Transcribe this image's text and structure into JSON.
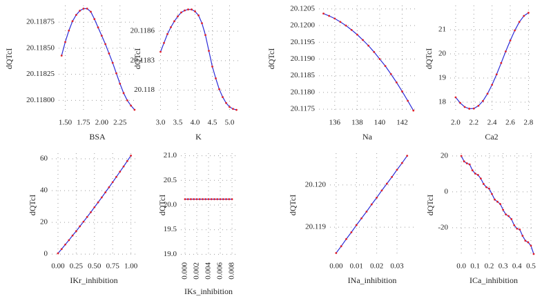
{
  "chart_data": [
    {
      "type": "line",
      "xlabel": "BSA",
      "ylabel": "dQTcI",
      "x": [
        1.45,
        1.5,
        1.55,
        1.6,
        1.65,
        1.7,
        1.75,
        1.8,
        1.85,
        1.9,
        1.95,
        2.0,
        2.05,
        2.1,
        2.15,
        2.2,
        2.25,
        2.3,
        2.35,
        2.4,
        2.45
      ],
      "values": [
        20.11843,
        20.11856,
        20.11867,
        20.11876,
        20.11882,
        20.11886,
        20.11888,
        20.11888,
        20.11885,
        20.11878,
        20.1187,
        20.11862,
        20.11854,
        20.11845,
        20.11836,
        20.11826,
        20.11816,
        20.11807,
        20.118,
        20.11795,
        20.11791
      ],
      "xlim": [
        1.41,
        2.47
      ],
      "ylim": [
        20.11789,
        20.11891
      ],
      "xticks": [
        {
          "value": 1.5,
          "label": "1.50"
        },
        1.75,
        {
          "value": 2,
          "label": "2.00"
        },
        2.25
      ],
      "yticks": [
        {
          "value": 20.118,
          "label": "20.11800"
        },
        20.11825,
        {
          "value": 20.1185,
          "label": "20.11850"
        },
        20.11875
      ],
      "grid": true,
      "color": "#2a2ad8",
      "marker_color": "#e0202a"
    },
    {
      "type": "line",
      "xlabel": "K",
      "ylabel": "dQTcI",
      "x": [
        3.0,
        3.1,
        3.2,
        3.3,
        3.4,
        3.5,
        3.6,
        3.7,
        3.8,
        3.9,
        4.0,
        4.1,
        4.2,
        4.3,
        4.4,
        4.5,
        4.6,
        4.7,
        4.8,
        4.9,
        5.0,
        5.1,
        5.2
      ],
      "values": [
        20.11839,
        20.11848,
        20.11857,
        20.11864,
        20.1187,
        20.11875,
        20.11879,
        20.11881,
        20.11882,
        20.11882,
        20.1188,
        20.11876,
        20.11868,
        20.11856,
        20.1184,
        20.11824,
        20.11812,
        20.11801,
        20.11793,
        20.11787,
        20.11783,
        20.11781,
        20.1178
      ],
      "xlim": [
        2.95,
        5.25
      ],
      "ylim": [
        20.11778,
        20.11886
      ],
      "xticks": [
        {
          "value": 3,
          "label": "3.0"
        },
        3.5,
        {
          "value": 4,
          "label": "4.0"
        },
        4.5,
        {
          "value": 5,
          "label": "5.0"
        }
      ],
      "yticks": [
        20.118,
        20.1183,
        20.1186
      ],
      "grid": true,
      "color": "#2a2ad8",
      "marker_color": "#e0202a"
    },
    {
      "type": "line",
      "xlabel": "Na",
      "ylabel": "dQTcI",
      "x": [
        135,
        135.5,
        136,
        136.5,
        137,
        137.5,
        138,
        138.5,
        139,
        139.5,
        140,
        140.5,
        141,
        141.5,
        142,
        142.5,
        143
      ],
      "values": [
        20.12036,
        20.12029,
        20.12021,
        20.12011,
        20.12,
        20.11987,
        20.11973,
        20.11957,
        20.1194,
        20.11921,
        20.119,
        20.11879,
        20.11855,
        20.1183,
        20.11803,
        20.11775,
        20.11746
      ],
      "xlim": [
        134.6,
        143.2
      ],
      "ylim": [
        20.11742,
        20.1206
      ],
      "xticks": [
        136,
        138,
        140,
        142
      ],
      "yticks": [
        20.1175,
        {
          "value": 20.118,
          "label": "20.1180"
        },
        20.1185,
        {
          "value": 20.119,
          "label": "20.1190"
        },
        20.1195,
        {
          "value": 20.12,
          "label": "20.1200"
        },
        20.1205
      ],
      "grid": true,
      "color": "#2a2ad8",
      "marker_color": "#e0202a"
    },
    {
      "type": "line",
      "xlabel": "Ca2",
      "ylabel": "dQTcI",
      "x": [
        2.0,
        2.05,
        2.1,
        2.15,
        2.2,
        2.25,
        2.3,
        2.35,
        2.4,
        2.45,
        2.5,
        2.55,
        2.6,
        2.65,
        2.7,
        2.75,
        2.8
      ],
      "values": [
        18.2,
        17.97,
        17.8,
        17.73,
        17.74,
        17.85,
        18.05,
        18.35,
        18.72,
        19.15,
        19.62,
        20.1,
        20.55,
        20.97,
        21.32,
        21.57,
        21.7
      ],
      "xlim": [
        1.94,
        2.85
      ],
      "ylim": [
        17.6,
        22.0
      ],
      "xticks": [
        {
          "value": 2,
          "label": "2.0"
        },
        2.2,
        2.4,
        2.6,
        2.8
      ],
      "yticks": [
        18,
        19,
        20,
        21
      ],
      "grid": true,
      "color": "#2a2ad8",
      "marker_color": "#e0202a"
    },
    {
      "type": "line",
      "xlabel": "IKr_inhibition",
      "ylabel": "dQTcI",
      "x": [
        0,
        0.05,
        0.1,
        0.15,
        0.2,
        0.25,
        0.3,
        0.35,
        0.4,
        0.45,
        0.5,
        0.55,
        0.6,
        0.65,
        0.7,
        0.75,
        0.8,
        0.85,
        0.9,
        0.95,
        1.0
      ],
      "values": [
        0.5,
        3.2,
        6.0,
        8.8,
        11.7,
        14.5,
        17.5,
        20.4,
        23.4,
        26.4,
        29.5,
        32.6,
        35.7,
        38.9,
        42.1,
        45.3,
        48.6,
        51.9,
        55.2,
        58.6,
        62.0
      ],
      "xlim": [
        -0.085,
        1.07
      ],
      "ylim": [
        -1.7,
        63.5
      ],
      "xticks": [
        {
          "value": 0,
          "label": "0.00"
        },
        0.25,
        {
          "value": 0.5,
          "label": "0.50"
        },
        0.75,
        {
          "value": 1,
          "label": "1.00"
        }
      ],
      "yticks": [
        0,
        20,
        40,
        60
      ],
      "grid": true,
      "color": "#2a2ad8",
      "marker_color": "#e0202a"
    },
    {
      "type": "line",
      "xlabel": "IKs_inhibition",
      "ylabel": "dQTcI",
      "x": [
        0,
        0.0005,
        0.001,
        0.0015,
        0.002,
        0.0025,
        0.003,
        0.0035,
        0.004,
        0.0045,
        0.005,
        0.0055,
        0.006,
        0.0065,
        0.007,
        0.0075,
        0.008
      ],
      "values": [
        20.1188,
        20.1188,
        20.1188,
        20.1188,
        20.1188,
        20.1188,
        20.1188,
        20.1188,
        20.1188,
        20.1188,
        20.1188,
        20.1188,
        20.1188,
        20.1188,
        20.1188,
        20.1188,
        20.1188
      ],
      "xlim": [
        -0.0007,
        0.0087
      ],
      "ylim": [
        18.95,
        21.05
      ],
      "xticks": [
        {
          "value": 0,
          "label": "0.000"
        },
        0.002,
        0.004,
        0.006,
        0.008
      ],
      "yticks": [
        {
          "value": 19,
          "label": "19.0"
        },
        19.5,
        {
          "value": 20,
          "label": "20.0"
        },
        20.5,
        {
          "value": 21,
          "label": "21.0"
        }
      ],
      "grid": true,
      "color": "#2a2ad8",
      "marker_color": "#e0202a"
    },
    {
      "type": "line",
      "xlabel": "INa_inhibition",
      "ylabel": "dQTcI",
      "x": [
        0,
        0.0025,
        0.005,
        0.0075,
        0.01,
        0.0125,
        0.015,
        0.0175,
        0.02,
        0.0225,
        0.025,
        0.0275,
        0.03,
        0.0325,
        0.035
      ],
      "values": [
        20.11839,
        20.11855,
        20.11872,
        20.11888,
        20.11905,
        20.11921,
        20.11937,
        20.11954,
        20.1197,
        20.11987,
        20.12003,
        20.12019,
        20.12036,
        20.12052,
        20.12069
      ],
      "xlim": [
        -0.003,
        0.0385
      ],
      "ylim": [
        20.1183,
        20.12075
      ],
      "xticks": [
        {
          "value": 0,
          "label": "0.00"
        },
        0.01,
        0.02,
        0.03
      ],
      "yticks": [
        20.119,
        {
          "value": 20.12,
          "label": "20.120"
        }
      ],
      "grid": true,
      "color": "#2a2ad8",
      "marker_color": "#e0202a"
    },
    {
      "type": "line",
      "xlabel": "ICa_inhibition",
      "ylabel": "dQTcI",
      "x": [
        0,
        0.02,
        0.04,
        0.06,
        0.08,
        0.1,
        0.12,
        0.14,
        0.16,
        0.18,
        0.2,
        0.22,
        0.24,
        0.26,
        0.28,
        0.3,
        0.32,
        0.34,
        0.36,
        0.38,
        0.4,
        0.42,
        0.44,
        0.46,
        0.48,
        0.5,
        0.52
      ],
      "values": [
        20.0,
        17.0,
        15.9,
        15.3,
        12.0,
        10.2,
        9.4,
        7.4,
        4.4,
        2.6,
        1.8,
        -1.2,
        -4.3,
        -5.5,
        -6.8,
        -10.0,
        -12.6,
        -13.5,
        -15.2,
        -18.6,
        -20.5,
        -21.0,
        -24.5,
        -27.2,
        -28.1,
        -30.0,
        -34.6
      ],
      "xlim": [
        -0.065,
        0.53
      ],
      "ylim": [
        -36.2,
        21.5
      ],
      "xticks": [
        {
          "value": 0,
          "label": "0.0"
        },
        0.1,
        0.2,
        0.3,
        0.4,
        0.5
      ],
      "yticks": [
        -20,
        0,
        20
      ],
      "grid": true,
      "color": "#2a2ad8",
      "marker_color": "#e0202a"
    }
  ]
}
